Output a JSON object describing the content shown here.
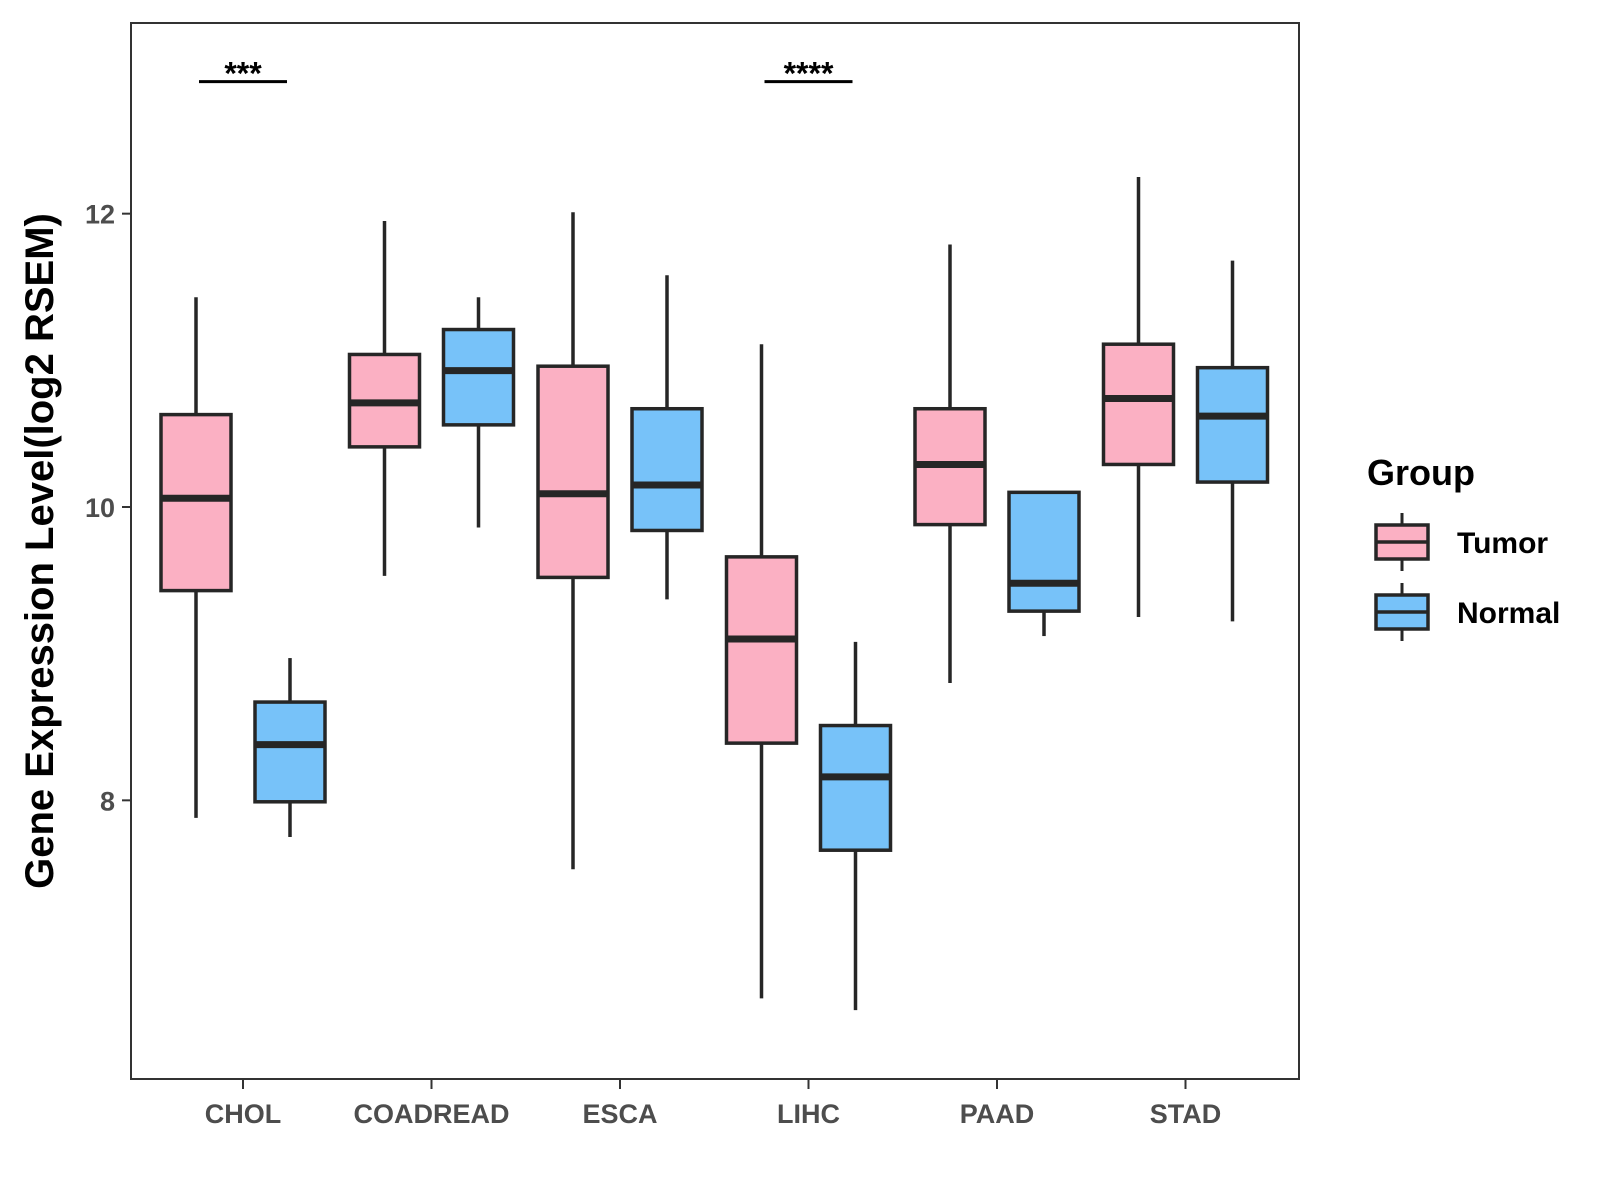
{
  "chart_data": {
    "type": "boxplot",
    "ylabel": "Gene Expression Level(log2 RSEM)",
    "xlabel": "",
    "ylim": [
      6.1,
      13.3
    ],
    "yticks": [
      8,
      10,
      12
    ],
    "categories": [
      "CHOL",
      "COADREAD",
      "ESCA",
      "LIHC",
      "PAAD",
      "STAD"
    ],
    "legend": {
      "title": "Group",
      "position": "right",
      "entries": [
        {
          "name": "Tumor",
          "color": "#FBB0C3"
        },
        {
          "name": "Normal",
          "color": "#77C2F9"
        }
      ]
    },
    "series": [
      {
        "name": "Tumor",
        "color": "#FBB0C3",
        "boxes": [
          {
            "category": "CHOL",
            "whisker_low": 7.88,
            "q1": 9.43,
            "median": 10.06,
            "q3": 10.63,
            "whisker_high": 11.43
          },
          {
            "category": "COADREAD",
            "whisker_low": 9.53,
            "q1": 10.41,
            "median": 10.71,
            "q3": 11.04,
            "whisker_high": 11.95
          },
          {
            "category": "ESCA",
            "whisker_low": 7.53,
            "q1": 9.52,
            "median": 10.09,
            "q3": 10.96,
            "whisker_high": 12.01
          },
          {
            "category": "LIHC",
            "whisker_low": 6.65,
            "q1": 8.39,
            "median": 9.1,
            "q3": 9.66,
            "whisker_high": 11.11
          },
          {
            "category": "PAAD",
            "whisker_low": 8.8,
            "q1": 9.88,
            "median": 10.29,
            "q3": 10.67,
            "whisker_high": 11.79
          },
          {
            "category": "STAD",
            "whisker_low": 9.25,
            "q1": 10.29,
            "median": 10.74,
            "q3": 11.11,
            "whisker_high": 12.25
          }
        ]
      },
      {
        "name": "Normal",
        "color": "#77C2F9",
        "boxes": [
          {
            "category": "CHOL",
            "whisker_low": 7.75,
            "q1": 7.99,
            "median": 8.38,
            "q3": 8.67,
            "whisker_high": 8.97
          },
          {
            "category": "COADREAD",
            "whisker_low": 9.86,
            "q1": 10.56,
            "median": 10.93,
            "q3": 11.21,
            "whisker_high": 11.43
          },
          {
            "category": "ESCA",
            "whisker_low": 9.37,
            "q1": 9.84,
            "median": 10.15,
            "q3": 10.67,
            "whisker_high": 11.58
          },
          {
            "category": "LIHC",
            "whisker_low": 6.57,
            "q1": 7.66,
            "median": 8.16,
            "q3": 8.51,
            "whisker_high": 9.08
          },
          {
            "category": "PAAD",
            "whisker_low": 9.12,
            "q1": 9.29,
            "median": 9.48,
            "q3": 10.1,
            "whisker_high": 10.1
          },
          {
            "category": "STAD",
            "whisker_low": 9.22,
            "q1": 10.17,
            "median": 10.62,
            "q3": 10.95,
            "whisker_high": 11.68
          }
        ]
      }
    ],
    "annotations": [
      {
        "category": "CHOL",
        "label": "***",
        "y": 12.9
      },
      {
        "category": "LIHC",
        "label": "****",
        "y": 12.9
      }
    ]
  }
}
